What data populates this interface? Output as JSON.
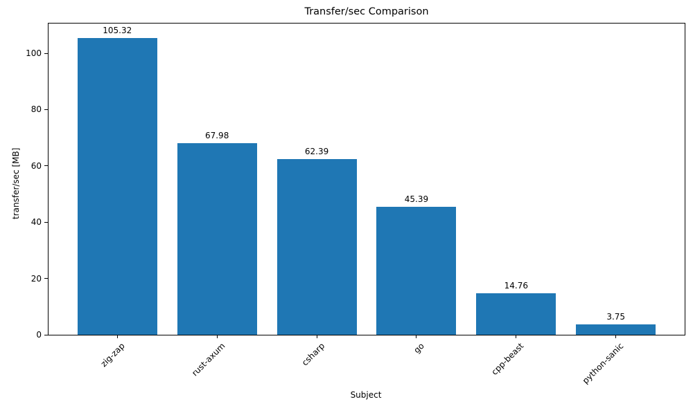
{
  "chart_data": {
    "type": "bar",
    "title": "Transfer/sec Comparison",
    "xlabel": "Subject",
    "ylabel": "transfer/sec [MB]",
    "categories": [
      "zig-zap",
      "rust-axum",
      "csharp",
      "go",
      "cpp-beast",
      "python-sanic"
    ],
    "values": [
      105.32,
      67.98,
      62.39,
      45.39,
      14.76,
      3.75
    ],
    "value_labels": [
      "105.32",
      "67.98",
      "62.39",
      "45.39",
      "14.76",
      "3.75"
    ],
    "yticks": [
      0,
      20,
      40,
      60,
      80,
      100
    ],
    "ylim": [
      0,
      110.59
    ],
    "xlim": [
      -0.69,
      5.69
    ],
    "bar_color": "#1f77b4",
    "bar_width_fraction": 0.8,
    "xtick_rotation_deg": 45,
    "grid": false,
    "legend": "none",
    "spines": "full-box"
  }
}
